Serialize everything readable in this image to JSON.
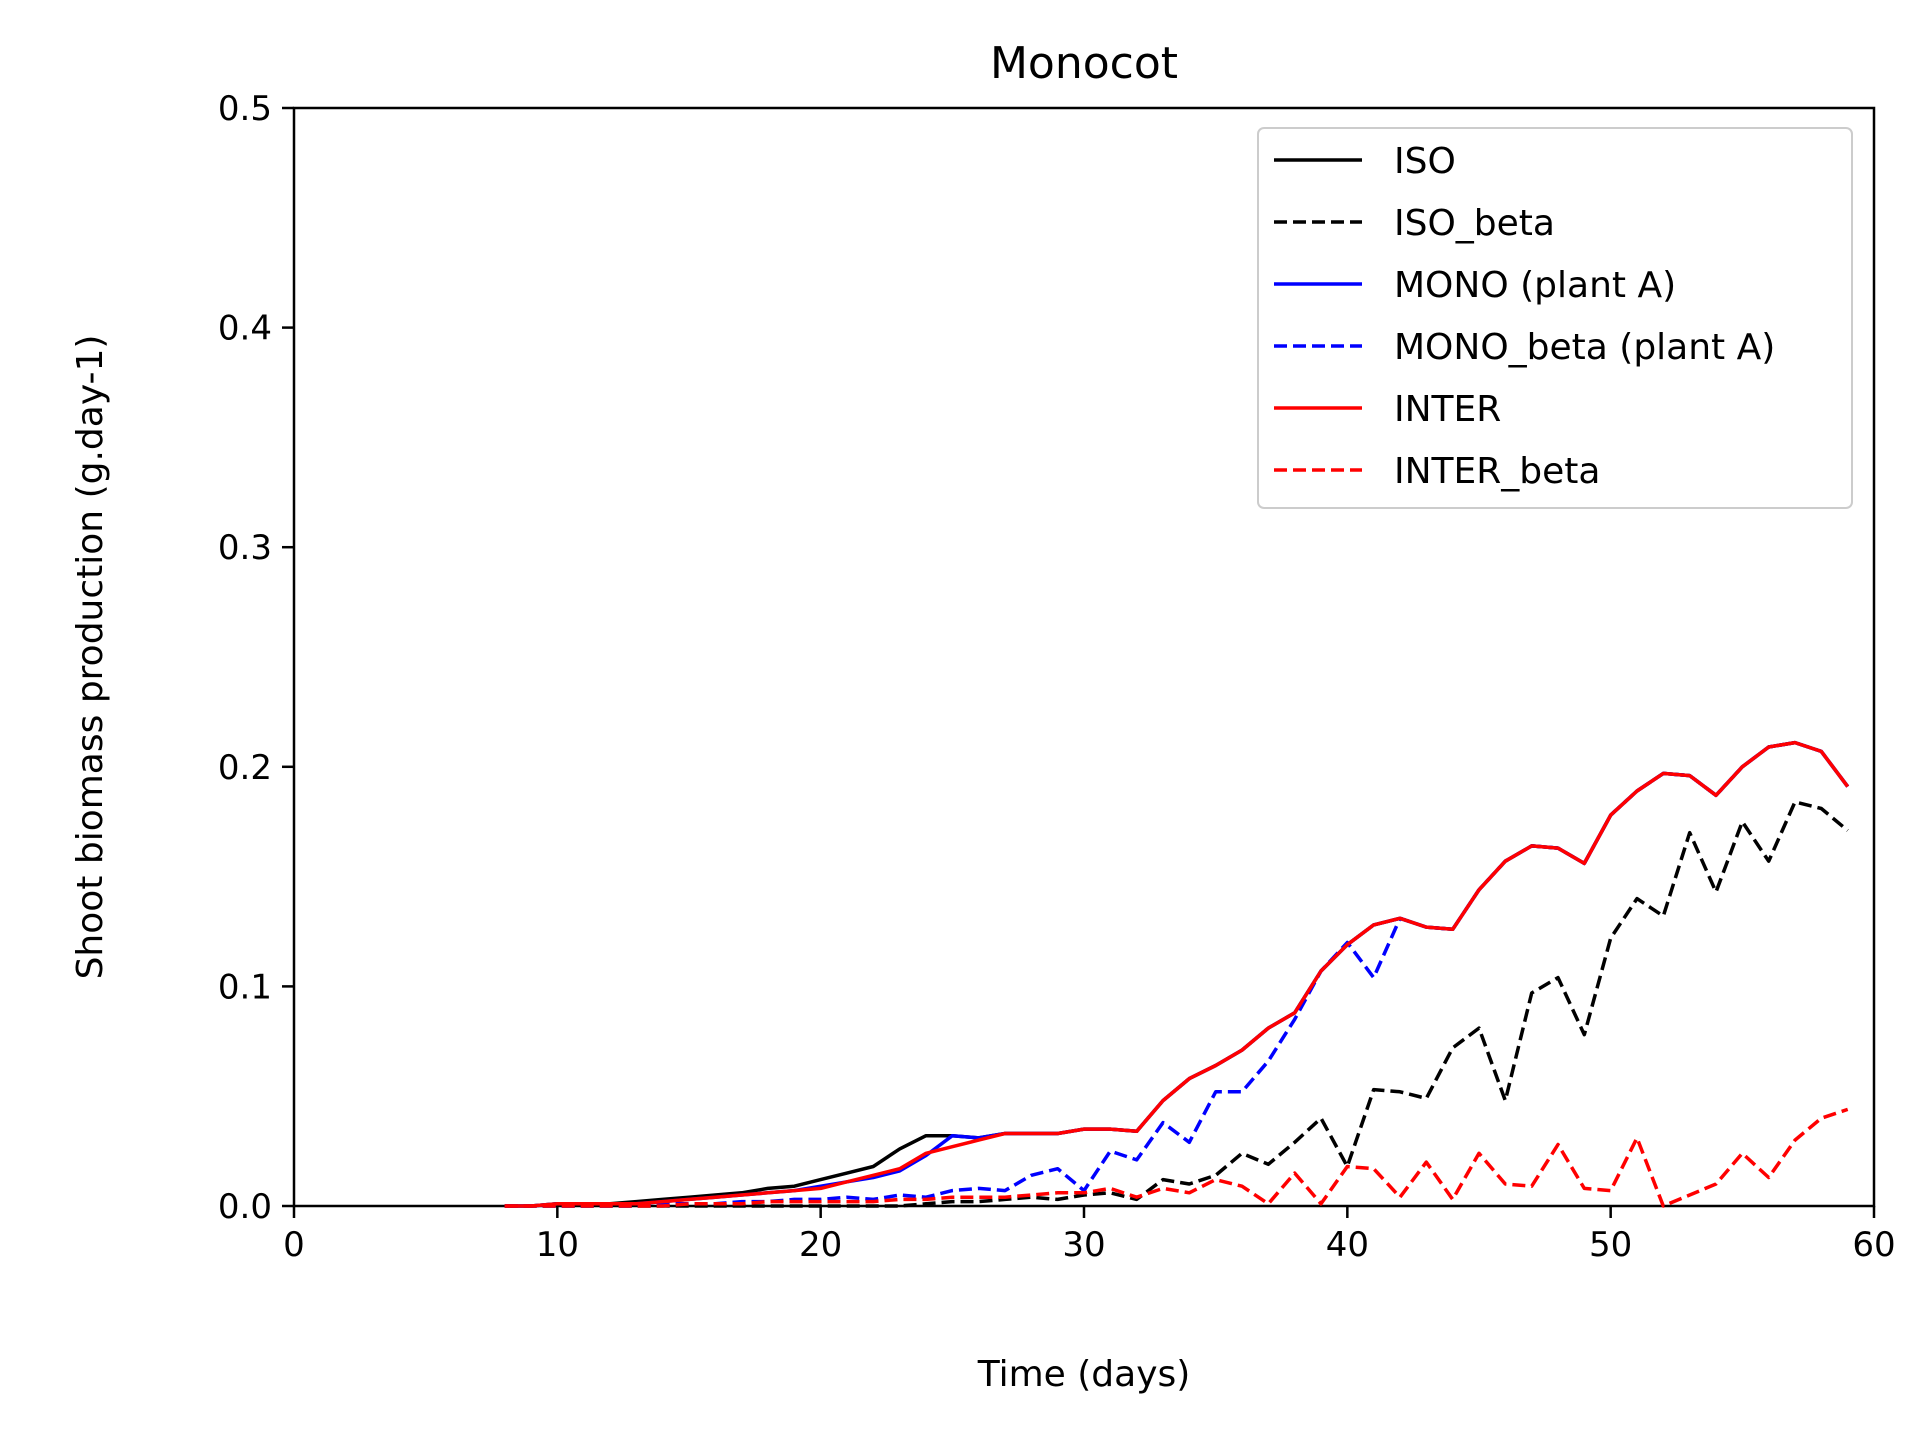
{
  "chart_data": {
    "type": "line",
    "title": "Monocot",
    "xlabel": "Time (days)",
    "ylabel": "Shoot biomass production (g.day-1)",
    "xlim": [
      0,
      60
    ],
    "ylim": [
      0,
      0.5
    ],
    "xticks": [
      0,
      10,
      20,
      30,
      40,
      50,
      60
    ],
    "yticks": [
      0.0,
      0.1,
      0.2,
      0.3,
      0.4,
      0.5
    ],
    "xtick_labels": [
      "0",
      "10",
      "20",
      "30",
      "40",
      "50",
      "60"
    ],
    "ytick_labels": [
      "0.0",
      "0.1",
      "0.2",
      "0.3",
      "0.4",
      "0.5"
    ],
    "grid": false,
    "legend_position": "top-right",
    "x": [
      8,
      9,
      10,
      11,
      12,
      13,
      14,
      15,
      16,
      17,
      18,
      19,
      20,
      21,
      22,
      23,
      24,
      25,
      26,
      27,
      28,
      29,
      30,
      31,
      32,
      33,
      34,
      35,
      36,
      37,
      38,
      39,
      40,
      41,
      42,
      43,
      44,
      45,
      46,
      47,
      48,
      49,
      50,
      51,
      52,
      53,
      54,
      55,
      56,
      57,
      58,
      59
    ],
    "series": [
      {
        "name": "ISO",
        "color": "#000000",
        "dash": "solid",
        "values": [
          0.0,
          0.0,
          0.001,
          0.001,
          0.001,
          0.002,
          0.003,
          0.004,
          0.005,
          0.006,
          0.008,
          0.009,
          0.012,
          0.015,
          0.018,
          0.026,
          0.032,
          0.032,
          0.031,
          0.033,
          0.033,
          0.033,
          0.035,
          0.035,
          0.034,
          0.048,
          0.058,
          0.064,
          0.071,
          0.081,
          0.088,
          0.107,
          0.119,
          0.128,
          0.131,
          0.127,
          0.126,
          0.144,
          0.157,
          0.164,
          0.163,
          0.156,
          0.178,
          0.189,
          0.197,
          0.196,
          0.187,
          0.2,
          0.209,
          0.211,
          0.207,
          0.191
        ]
      },
      {
        "name": "ISO_beta",
        "color": "#000000",
        "dash": "dashed",
        "values": [
          0.0,
          0.0,
          0.0,
          0.0,
          0.0,
          0.0,
          0.0,
          0.0,
          0.0,
          0.0,
          0.0,
          0.0,
          0.0,
          0.0,
          0.0,
          0.0,
          0.001,
          0.002,
          0.002,
          0.003,
          0.004,
          0.003,
          0.005,
          0.006,
          0.003,
          0.012,
          0.01,
          0.014,
          0.024,
          0.019,
          0.029,
          0.04,
          0.018,
          0.053,
          0.052,
          0.049,
          0.072,
          0.081,
          0.048,
          0.097,
          0.104,
          0.078,
          0.122,
          0.14,
          0.132,
          0.17,
          0.143,
          0.175,
          0.157,
          0.184,
          0.181,
          0.171
        ]
      },
      {
        "name": "MONO (plant A)",
        "color": "#0000ff",
        "dash": "solid",
        "values": [
          0.0,
          0.0,
          0.001,
          0.001,
          0.001,
          0.001,
          0.002,
          0.003,
          0.004,
          0.005,
          0.006,
          0.007,
          0.009,
          0.011,
          0.013,
          0.016,
          0.023,
          0.032,
          0.031,
          0.033,
          0.033,
          0.033,
          0.035,
          0.035,
          0.034,
          0.048,
          0.058,
          0.064,
          0.071,
          0.081,
          0.088,
          0.107,
          0.119,
          0.128,
          0.131,
          0.127,
          0.126,
          0.144,
          0.157,
          0.164,
          0.163,
          0.156,
          0.178,
          0.189,
          0.197,
          0.196,
          0.187,
          0.2,
          0.209,
          0.211,
          0.207,
          0.191
        ]
      },
      {
        "name": "MONO_beta (plant A)",
        "color": "#0000ff",
        "dash": "dashed",
        "values": [
          0.0,
          0.0,
          0.0,
          0.0,
          0.0,
          0.0,
          0.001,
          0.001,
          0.001,
          0.002,
          0.002,
          0.003,
          0.003,
          0.004,
          0.003,
          0.005,
          0.004,
          0.007,
          0.008,
          0.007,
          0.014,
          0.017,
          0.007,
          0.025,
          0.021,
          0.038,
          0.029,
          0.052,
          0.052,
          0.066,
          0.085,
          0.107,
          0.12,
          0.104,
          0.131,
          0.127,
          0.126,
          0.144,
          0.157,
          0.164,
          0.163,
          0.156,
          0.178,
          0.189,
          0.197,
          0.196,
          0.187,
          0.2,
          0.209,
          0.211,
          0.207,
          0.191
        ]
      },
      {
        "name": "INTER",
        "color": "#ff0000",
        "dash": "solid",
        "values": [
          0.0,
          0.0,
          0.001,
          0.001,
          0.001,
          0.001,
          0.002,
          0.003,
          0.004,
          0.005,
          0.006,
          0.007,
          0.008,
          0.011,
          0.014,
          0.017,
          0.024,
          0.027,
          0.03,
          0.033,
          0.033,
          0.033,
          0.035,
          0.035,
          0.034,
          0.048,
          0.058,
          0.064,
          0.071,
          0.081,
          0.088,
          0.107,
          0.119,
          0.128,
          0.131,
          0.127,
          0.126,
          0.144,
          0.157,
          0.164,
          0.163,
          0.156,
          0.178,
          0.189,
          0.197,
          0.196,
          0.187,
          0.2,
          0.209,
          0.211,
          0.207,
          0.191
        ]
      },
      {
        "name": "INTER_beta",
        "color": "#ff0000",
        "dash": "dashed",
        "values": [
          0.0,
          0.0,
          0.0,
          0.0,
          0.0,
          0.0,
          0.0,
          0.001,
          0.001,
          0.001,
          0.002,
          0.002,
          0.002,
          0.002,
          0.002,
          0.003,
          0.003,
          0.004,
          0.004,
          0.004,
          0.005,
          0.006,
          0.006,
          0.008,
          0.004,
          0.008,
          0.006,
          0.012,
          0.009,
          0.001,
          0.015,
          0.001,
          0.018,
          0.017,
          0.004,
          0.02,
          0.003,
          0.024,
          0.01,
          0.009,
          0.028,
          0.008,
          0.007,
          0.031,
          0.0,
          0.005,
          0.01,
          0.024,
          0.013,
          0.03,
          0.04,
          0.044
        ]
      }
    ]
  }
}
